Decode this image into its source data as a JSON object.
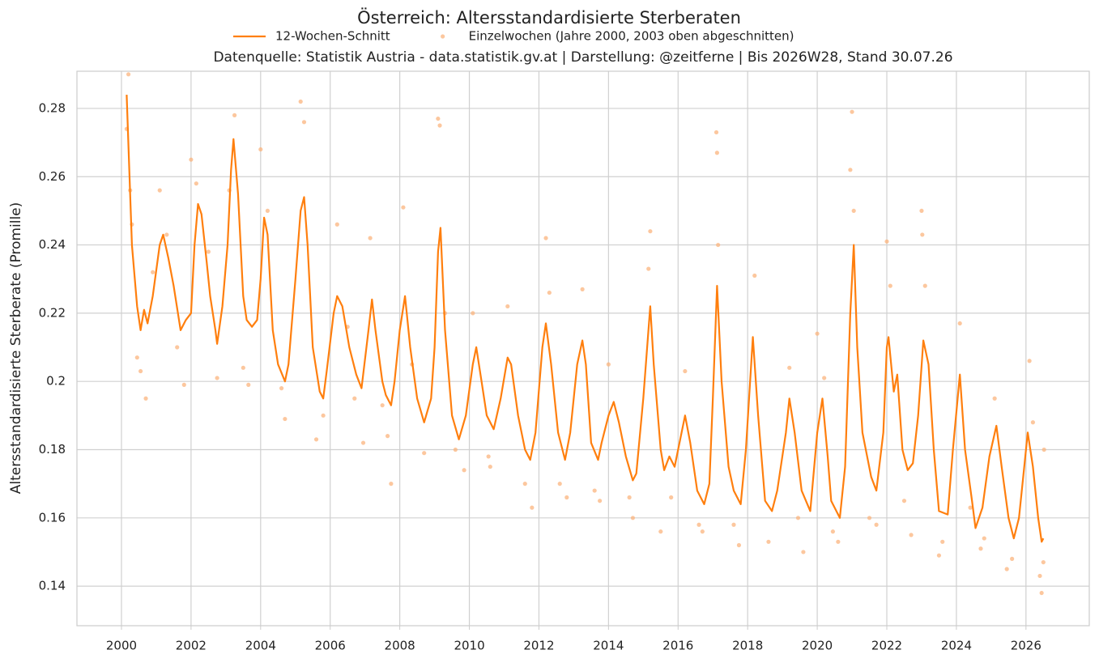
{
  "chart_data": {
    "type": "line",
    "title": "Österreich: Altersstandardisierte Sterberaten",
    "subtitle": "Datenquelle: Statistik Austria - data.statistik.gv.at | Darstellung: @zeitferne | Bis 2026W28, Stand 30.07.26",
    "y_label": "Altersstandardisierte Sterberate (Promille)",
    "xlim": [
      1998.72,
      2027.82
    ],
    "ylim": [
      0.1284,
      0.2909
    ],
    "xticks": [
      2000,
      2002,
      2004,
      2006,
      2008,
      2010,
      2012,
      2014,
      2016,
      2018,
      2020,
      2022,
      2024,
      2026
    ],
    "yticks": [
      0.14,
      0.16,
      0.18,
      0.2,
      0.22,
      0.24,
      0.26,
      0.28
    ],
    "grid": true,
    "legend": "top",
    "series": [
      {
        "name": "12-Wochen-Schnitt",
        "type": "line",
        "color": "#ff7f0e",
        "x": [
          2000.15,
          2000.3,
          2000.45,
          2000.55,
          2000.65,
          2000.75,
          2000.9,
          2001.1,
          2001.2,
          2001.35,
          2001.5,
          2001.7,
          2001.85,
          2002.0,
          2002.1,
          2002.2,
          2002.3,
          2002.45,
          2002.55,
          2002.7,
          2002.75,
          2002.9,
          2003.05,
          2003.15,
          2003.22,
          2003.35,
          2003.5,
          2003.6,
          2003.75,
          2003.9,
          2004.0,
          2004.1,
          2004.2,
          2004.35,
          2004.5,
          2004.7,
          2004.8,
          2005.0,
          2005.15,
          2005.25,
          2005.35,
          2005.5,
          2005.7,
          2005.8,
          2005.9,
          2006.1,
          2006.2,
          2006.35,
          2006.55,
          2006.75,
          2006.9,
          2007.1,
          2007.2,
          2007.3,
          2007.5,
          2007.6,
          2007.75,
          2007.85,
          2008.0,
          2008.15,
          2008.3,
          2008.5,
          2008.7,
          2008.9,
          2009.0,
          2009.1,
          2009.17,
          2009.3,
          2009.5,
          2009.7,
          2009.9,
          2010.1,
          2010.2,
          2010.35,
          2010.5,
          2010.7,
          2010.9,
          2011.1,
          2011.2,
          2011.4,
          2011.6,
          2011.75,
          2011.9,
          2012.1,
          2012.2,
          2012.35,
          2012.55,
          2012.75,
          2012.9,
          2013.1,
          2013.25,
          2013.35,
          2013.5,
          2013.7,
          2013.8,
          2014.0,
          2014.15,
          2014.3,
          2014.5,
          2014.7,
          2014.8,
          2015.0,
          2015.2,
          2015.3,
          2015.5,
          2015.6,
          2015.75,
          2015.9,
          2016.1,
          2016.2,
          2016.35,
          2016.55,
          2016.75,
          2016.9,
          2017.0,
          2017.12,
          2017.25,
          2017.45,
          2017.6,
          2017.8,
          2017.95,
          2018.15,
          2018.3,
          2018.5,
          2018.7,
          2018.85,
          2019.1,
          2019.2,
          2019.35,
          2019.55,
          2019.8,
          2020.0,
          2020.15,
          2020.3,
          2020.4,
          2020.65,
          2020.8,
          2020.95,
          2021.05,
          2021.15,
          2021.3,
          2021.55,
          2021.7,
          2021.9,
          2022.0,
          2022.05,
          2022.2,
          2022.3,
          2022.45,
          2022.6,
          2022.75,
          2022.9,
          2023.05,
          2023.2,
          2023.35,
          2023.5,
          2023.75,
          2023.9,
          2024.1,
          2024.25,
          2024.45,
          2024.55,
          2024.75,
          2024.95,
          2025.15,
          2025.3,
          2025.5,
          2025.65,
          2025.8,
          2025.95,
          2026.05,
          2026.2,
          2026.35,
          2026.45,
          2026.5
        ],
        "values": [
          0.284,
          0.24,
          0.222,
          0.215,
          0.221,
          0.217,
          0.225,
          0.24,
          0.243,
          0.236,
          0.228,
          0.215,
          0.218,
          0.22,
          0.24,
          0.252,
          0.249,
          0.235,
          0.225,
          0.215,
          0.211,
          0.222,
          0.24,
          0.262,
          0.271,
          0.255,
          0.225,
          0.218,
          0.216,
          0.218,
          0.23,
          0.248,
          0.243,
          0.215,
          0.205,
          0.2,
          0.205,
          0.23,
          0.25,
          0.254,
          0.24,
          0.21,
          0.197,
          0.195,
          0.203,
          0.22,
          0.225,
          0.222,
          0.21,
          0.202,
          0.198,
          0.215,
          0.224,
          0.215,
          0.2,
          0.196,
          0.193,
          0.2,
          0.215,
          0.225,
          0.21,
          0.195,
          0.188,
          0.195,
          0.21,
          0.238,
          0.245,
          0.215,
          0.19,
          0.183,
          0.19,
          0.205,
          0.21,
          0.2,
          0.19,
          0.186,
          0.195,
          0.207,
          0.205,
          0.19,
          0.18,
          0.177,
          0.185,
          0.21,
          0.217,
          0.205,
          0.185,
          0.177,
          0.185,
          0.205,
          0.212,
          0.205,
          0.182,
          0.177,
          0.182,
          0.19,
          0.194,
          0.188,
          0.178,
          0.171,
          0.173,
          0.195,
          0.222,
          0.205,
          0.18,
          0.174,
          0.178,
          0.175,
          0.185,
          0.19,
          0.182,
          0.168,
          0.164,
          0.17,
          0.195,
          0.228,
          0.2,
          0.175,
          0.168,
          0.164,
          0.18,
          0.213,
          0.19,
          0.165,
          0.162,
          0.168,
          0.185,
          0.195,
          0.185,
          0.168,
          0.162,
          0.185,
          0.195,
          0.178,
          0.165,
          0.16,
          0.175,
          0.22,
          0.24,
          0.21,
          0.185,
          0.172,
          0.168,
          0.185,
          0.21,
          0.213,
          0.197,
          0.202,
          0.18,
          0.174,
          0.176,
          0.19,
          0.212,
          0.205,
          0.18,
          0.162,
          0.161,
          0.18,
          0.202,
          0.18,
          0.165,
          0.157,
          0.163,
          0.178,
          0.187,
          0.175,
          0.16,
          0.154,
          0.16,
          0.175,
          0.185,
          0.175,
          0.16,
          0.153,
          0.154
        ]
      },
      {
        "name": "Einzelwochen (Jahre 2000, 2003 oben abgeschnitten)",
        "type": "scatter",
        "color": "#fbb47e",
        "x": [
          2000.15,
          2000.2,
          2000.25,
          2000.3,
          2000.45,
          2000.55,
          2000.7,
          2000.9,
          2001.1,
          2001.3,
          2001.6,
          2001.8,
          2002.0,
          2002.15,
          2002.5,
          2002.75,
          2003.1,
          2003.25,
          2003.5,
          2003.65,
          2004.0,
          2004.2,
          2004.6,
          2004.7,
          2005.15,
          2005.25,
          2005.6,
          2005.8,
          2006.2,
          2006.5,
          2006.7,
          2006.95,
          2007.15,
          2007.5,
          2007.65,
          2007.75,
          2008.1,
          2008.35,
          2008.7,
          2009.1,
          2009.15,
          2009.3,
          2009.6,
          2009.85,
          2010.1,
          2010.55,
          2010.6,
          2011.1,
          2011.6,
          2011.8,
          2012.2,
          2012.3,
          2012.6,
          2012.8,
          2013.25,
          2013.6,
          2013.75,
          2014.0,
          2014.6,
          2014.7,
          2015.2,
          2015.15,
          2015.5,
          2015.8,
          2016.2,
          2016.6,
          2016.7,
          2017.1,
          2017.12,
          2017.15,
          2017.6,
          2017.75,
          2018.2,
          2018.6,
          2019.2,
          2019.45,
          2019.6,
          2020.0,
          2020.2,
          2020.45,
          2020.6,
          2020.95,
          2021.0,
          2021.05,
          2021.5,
          2021.7,
          2022.0,
          2022.1,
          2022.5,
          2022.7,
          2023.0,
          2023.02,
          2023.1,
          2023.5,
          2023.6,
          2024.1,
          2024.4,
          2024.7,
          2024.8,
          2025.1,
          2025.45,
          2025.6,
          2026.1,
          2026.2,
          2026.4,
          2026.45,
          2026.5,
          2026.52
        ],
        "values": [
          0.274,
          0.29,
          0.256,
          0.246,
          0.207,
          0.203,
          0.195,
          0.232,
          0.256,
          0.243,
          0.21,
          0.199,
          0.265,
          0.258,
          0.238,
          0.201,
          0.256,
          0.278,
          0.204,
          0.199,
          0.268,
          0.25,
          0.198,
          0.189,
          0.282,
          0.276,
          0.183,
          0.19,
          0.246,
          0.216,
          0.195,
          0.182,
          0.242,
          0.193,
          0.184,
          0.17,
          0.251,
          0.205,
          0.179,
          0.277,
          0.275,
          0.22,
          0.18,
          0.174,
          0.22,
          0.178,
          0.175,
          0.222,
          0.17,
          0.163,
          0.242,
          0.226,
          0.17,
          0.166,
          0.227,
          0.168,
          0.165,
          0.205,
          0.166,
          0.16,
          0.244,
          0.233,
          0.156,
          0.166,
          0.203,
          0.158,
          0.156,
          0.273,
          0.267,
          0.24,
          0.158,
          0.152,
          0.231,
          0.153,
          0.204,
          0.16,
          0.15,
          0.214,
          0.201,
          0.156,
          0.153,
          0.262,
          0.279,
          0.25,
          0.16,
          0.158,
          0.241,
          0.228,
          0.165,
          0.155,
          0.25,
          0.243,
          0.228,
          0.149,
          0.153,
          0.217,
          0.163,
          0.151,
          0.154,
          0.195,
          0.145,
          0.148,
          0.206,
          0.188,
          0.143,
          0.138,
          0.147,
          0.18
        ]
      }
    ]
  }
}
